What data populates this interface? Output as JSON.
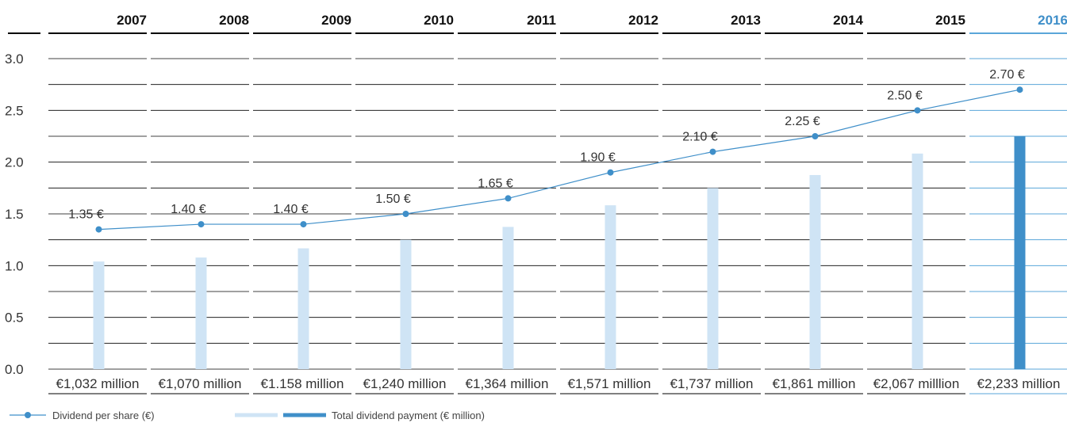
{
  "chart_data": {
    "type": "bar+line",
    "categories": [
      "2007",
      "2008",
      "2009",
      "2010",
      "2011",
      "2012",
      "2013",
      "2014",
      "2015",
      "2016"
    ],
    "highlight_category": "2016",
    "y_ticks": [
      "3.0",
      "2.5",
      "2.0",
      "1.5",
      "1.0",
      "0.5",
      "0.0"
    ],
    "ylim": [
      0,
      3
    ],
    "series": [
      {
        "name": "Dividend per share (€)",
        "kind": "line",
        "values": [
          1.35,
          1.4,
          1.4,
          1.5,
          1.65,
          1.9,
          2.1,
          2.25,
          2.5,
          2.7
        ],
        "labels": [
          "1.35 €",
          "1.40 €",
          "1.40 €",
          "1.50 €",
          "1.65 €",
          "1.90 €",
          "2.10 €",
          "2.25 €",
          "2.50 €",
          "2.70 €"
        ]
      },
      {
        "name": "Total dividend payment (€ million)",
        "kind": "bar",
        "values": [
          1032,
          1070,
          1158,
          1240,
          1364,
          1571,
          1737,
          1861,
          2067,
          2233
        ],
        "labels": [
          "€1,032 million",
          "€1,070 million",
          "€1.158 million",
          "€1,240 million",
          "€1,364 million",
          "€1,571 million",
          "€1,737 million",
          "€1,861 million",
          "€2,067 milllion",
          "€2,233 million"
        ]
      }
    ],
    "grid": true,
    "legend_position": "bottom-left",
    "colors": {
      "line": "#3f8fc9",
      "bar": "#cfe4f5",
      "bar_highlight": "#3f8fc9",
      "highlight_text": "#3f8fc9",
      "grid": "#000000",
      "grid_highlight": "#5aa6d9"
    }
  }
}
